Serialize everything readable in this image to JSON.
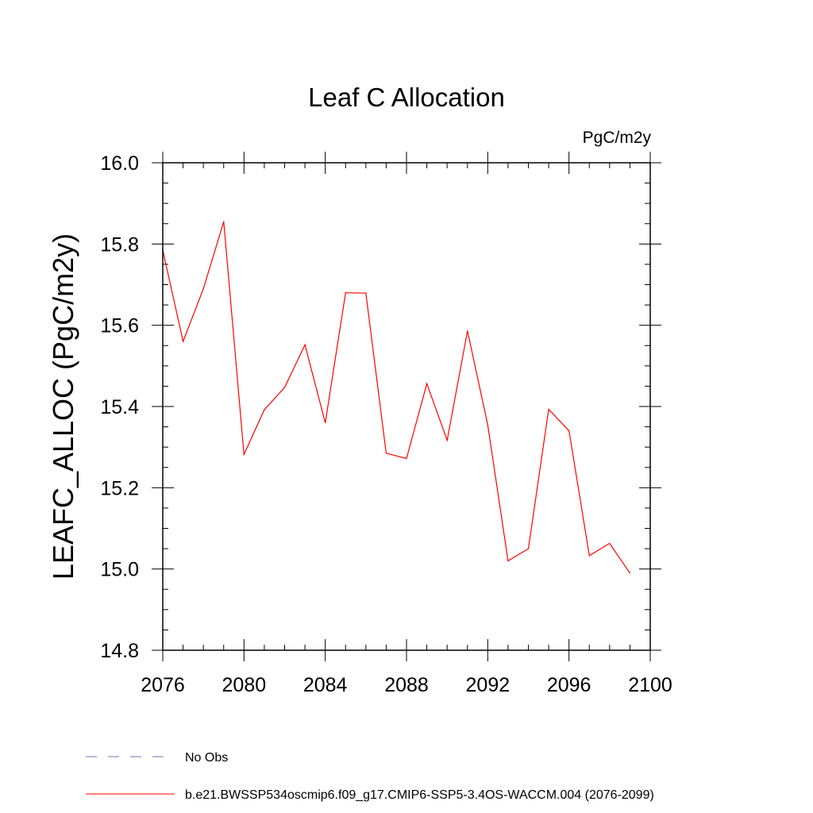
{
  "chart_data": {
    "type": "line",
    "title": "Leaf C Allocation",
    "units_label": "PgC/m2y",
    "xlabel": "",
    "ylabel": "LEAFC_ALLOC  (PgC/m2y)",
    "xlim": [
      2076,
      2100
    ],
    "ylim": [
      14.8,
      16.0
    ],
    "x_ticks": [
      "2076",
      "2080",
      "2084",
      "2088",
      "2092",
      "2096",
      "2100"
    ],
    "y_ticks": [
      "14.8",
      "15.0",
      "15.2",
      "15.4",
      "15.6",
      "15.8",
      "16.0"
    ],
    "grid": false,
    "legend_position": "bottom",
    "series": [
      {
        "name": "b.e21.BWSSP534oscmip6.f09_g17.CMIP6-SSP5-3.4OS-WACCM.004 (2076-2099)",
        "color": "#ff0000",
        "line_style": "solid",
        "x": [
          2076,
          2077,
          2078,
          2079,
          2080,
          2081,
          2082,
          2083,
          2084,
          2085,
          2086,
          2087,
          2088,
          2089,
          2090,
          2091,
          2092,
          2093,
          2094,
          2095,
          2096,
          2097,
          2098,
          2099
        ],
        "values": [
          15.785,
          15.56,
          15.69,
          15.855,
          15.282,
          15.392,
          15.447,
          15.552,
          15.36,
          15.68,
          15.679,
          15.285,
          15.272,
          15.456,
          15.317,
          15.586,
          15.355,
          15.02,
          15.05,
          15.393,
          15.34,
          15.033,
          15.063,
          14.99
        ]
      }
    ],
    "legend": [
      {
        "label": "No Obs",
        "color": "#7b6fb5",
        "line_style": "dashed"
      },
      {
        "label": "b.e21.BWSSP534oscmip6.f09_g17.CMIP6-SSP5-3.4OS-WACCM.004 (2076-2099)",
        "color": "#ff0000",
        "line_style": "solid"
      }
    ]
  }
}
